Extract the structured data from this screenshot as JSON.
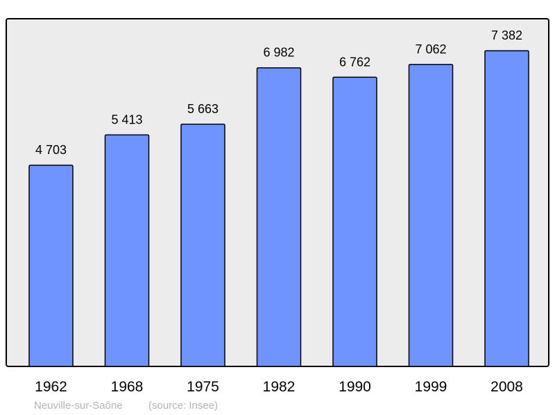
{
  "chart_data": {
    "type": "bar",
    "categories": [
      "1962",
      "1968",
      "1975",
      "1982",
      "1990",
      "1999",
      "2008"
    ],
    "values": [
      4703,
      5413,
      5663,
      6982,
      6762,
      7062,
      7382
    ],
    "value_labels": [
      "4 703",
      "5 413",
      "5 663",
      "6 982",
      "6 762",
      "7 062",
      "7 382"
    ],
    "title": "",
    "xlabel": "",
    "ylabel": "",
    "ylim": [
      0,
      8130
    ],
    "grid": false,
    "caption_place": "Neuville-sur-Saône",
    "caption_source": "(source: Insee)",
    "colors": {
      "bar": "#7094ff",
      "plot_background": "#ececec",
      "caption": "#b4b4b4"
    }
  }
}
